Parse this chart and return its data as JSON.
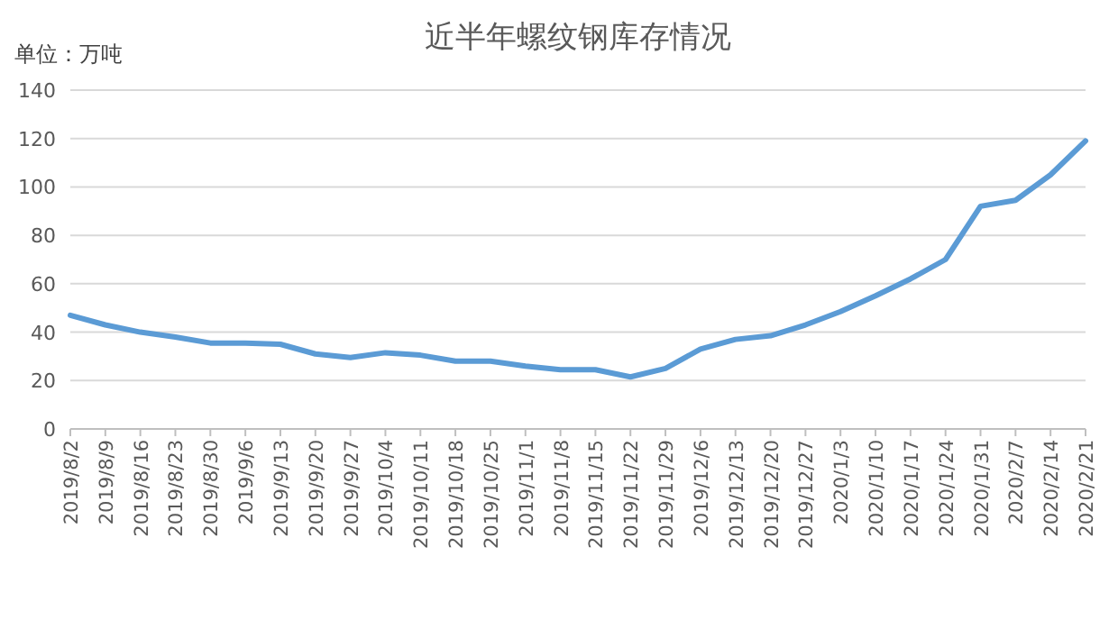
{
  "chart_data": {
    "type": "line",
    "title": "近半年螺纹钢库存情况",
    "ylabel": "单位：万吨",
    "categories": [
      "2019/8/2",
      "2019/8/9",
      "2019/8/16",
      "2019/8/23",
      "2019/8/30",
      "2019/9/6",
      "2019/9/13",
      "2019/9/20",
      "2019/9/27",
      "2019/10/4",
      "2019/10/11",
      "2019/10/18",
      "2019/10/25",
      "2019/11/1",
      "2019/11/8",
      "2019/11/15",
      "2019/11/22",
      "2019/11/29",
      "2019/12/6",
      "2019/12/13",
      "2019/12/20",
      "2019/12/27",
      "2020/1/3",
      "2020/1/10",
      "2020/1/17",
      "2020/1/24",
      "2020/1/31",
      "2020/2/7",
      "2020/2/14",
      "2020/2/21"
    ],
    "series": [
      {
        "color": "#5b9bd5",
        "values": [
          47,
          43,
          40,
          38,
          35.5,
          35.5,
          35,
          31,
          29.5,
          31.5,
          30.5,
          28,
          28,
          26,
          24.5,
          24.5,
          21.5,
          25,
          33,
          37,
          38.5,
          43,
          48.5,
          55,
          62,
          70,
          92,
          94.5,
          105,
          119
        ]
      }
    ],
    "ylim": [
      0,
      140
    ],
    "yticks": [
      0,
      20,
      40,
      60,
      80,
      100,
      120,
      140
    ],
    "grid": "y",
    "marker": "none",
    "line_style": "solid"
  }
}
